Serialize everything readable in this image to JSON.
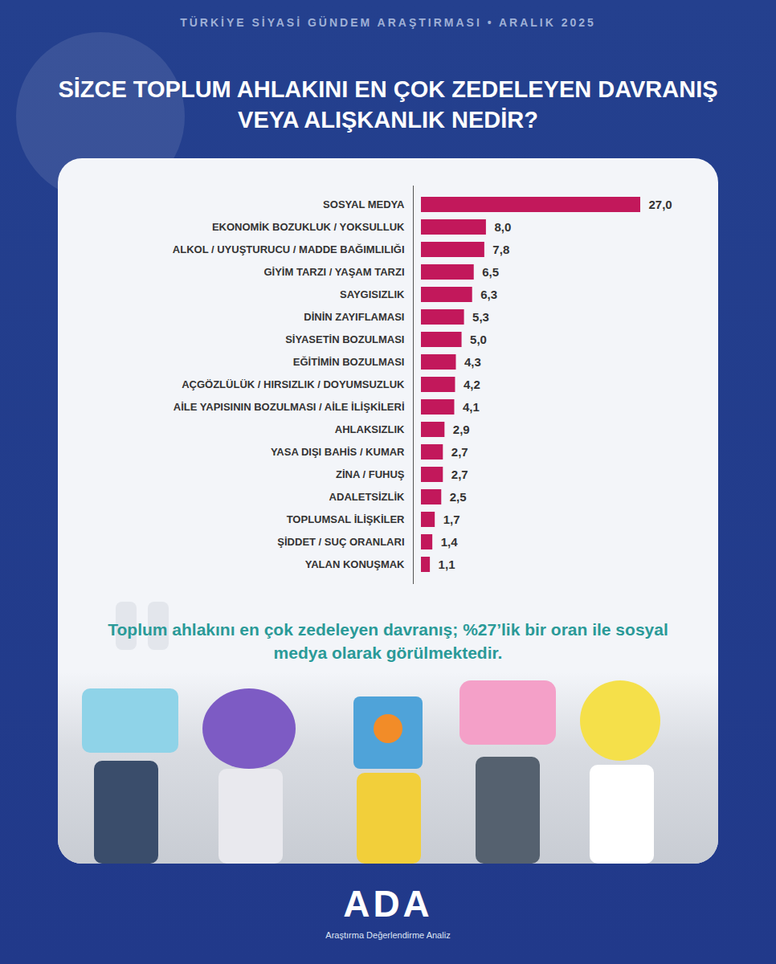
{
  "chart_data": {
    "type": "bar",
    "orientation": "horizontal",
    "subtitle": "TÜRKİYE SİYASİ GÜNDEM ARAŞTIRMASI • ARALIK 2025",
    "title": "SİZCE TOPLUM AHLAKINI EN ÇOK ZEDELEYEN DAVRANIŞ VEYA ALIŞKANLIK NEDİR?",
    "categories": [
      "SOSYAL MEDYA",
      "EKONOMİK BOZUKLUK / YOKSULLUK",
      "ALKOL / UYUŞTURUCU / MADDE BAĞIMLILIĞI",
      "GİYİM TARZI / YAŞAM TARZI",
      "SAYGISIZLIK",
      "DİNİN ZAYIFLAMASI",
      "SİYASETİN BOZULMASI",
      "EĞİTİMİN BOZULMASI",
      "AÇGÖZLÜLÜK / HIRSIZLIK / DOYUMSUZLUK",
      "AİLE YAPISININ BOZULMASI / AİLE İLİŞKİLERİ",
      "AHLAKSIZLIK",
      "YASA DIŞI BAHİS / KUMAR",
      "ZİNA / FUHUŞ",
      "ADALETSİZLİK",
      "TOPLUMSAL İLİŞKİLER",
      "ŞİDDET / SUÇ ORANLARI",
      "YALAN KONUŞMAK"
    ],
    "values": [
      27.0,
      8.0,
      7.8,
      6.5,
      6.3,
      5.3,
      5.0,
      4.3,
      4.2,
      4.1,
      2.9,
      2.7,
      2.7,
      2.5,
      1.7,
      1.4,
      1.1
    ],
    "value_labels": [
      "27,0",
      "8,0",
      "7,8",
      "6,5",
      "6,3",
      "5,3",
      "5,0",
      "4,3",
      "4,2",
      "4,1",
      "2,9",
      "2,7",
      "2,7",
      "2,5",
      "1,7",
      "1,4",
      "1,1"
    ],
    "color": "#c2185b",
    "xlim": [
      0,
      27
    ],
    "data_labels": true,
    "tick_labels": "y",
    "annotations": [
      "Toplum ahlakını en çok zedeleyen davranış; %27’lik bir oran ile sosyal medya olarak görülmektedir."
    ],
    "footer": {
      "logo": "ADA",
      "text": "Araştırma Değerlendirme Analiz"
    }
  }
}
